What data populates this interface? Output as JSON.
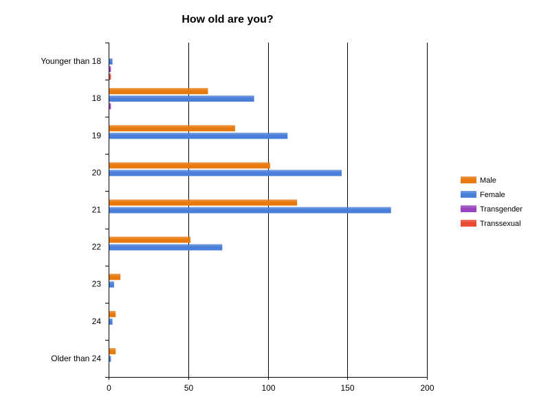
{
  "chart_data": {
    "type": "bar",
    "orientation": "horizontal",
    "title": "How old are you?",
    "categories": [
      "Younger than 18",
      "18",
      "19",
      "20",
      "21",
      "22",
      "23",
      "24",
      "Older than 24"
    ],
    "series": [
      {
        "name": "Male",
        "color": "#E8790F",
        "values": [
          0,
          62,
          79,
          101,
          118,
          51,
          7,
          4,
          4
        ]
      },
      {
        "name": "Female",
        "color": "#4A7FD9",
        "values": [
          2,
          91,
          112,
          146,
          177,
          71,
          3,
          2,
          1
        ]
      },
      {
        "name": "Transgender",
        "color": "#9B44C2",
        "values": [
          1,
          1,
          0,
          0,
          0,
          0,
          0,
          0,
          0
        ]
      },
      {
        "name": "Transsexual",
        "color": "#E84A33",
        "values": [
          1,
          0,
          0,
          0,
          0,
          0,
          0,
          0,
          0
        ]
      }
    ],
    "xlim": [
      0,
      200
    ],
    "xticks": [
      0,
      50,
      100,
      150,
      200
    ],
    "grid": true,
    "legend_position": "right"
  }
}
